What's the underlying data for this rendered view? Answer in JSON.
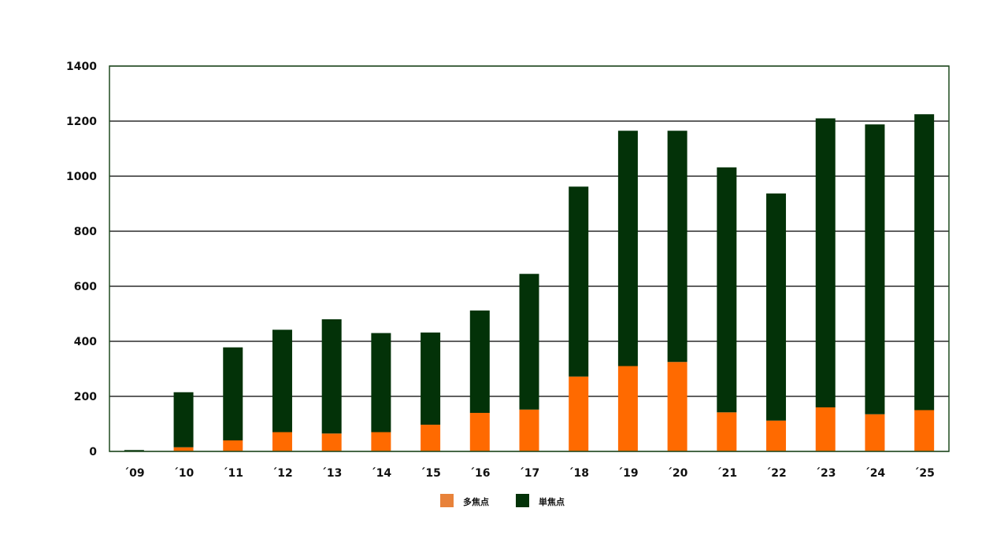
{
  "chart_data": {
    "type": "bar",
    "stacked": true,
    "title": "",
    "xlabel": "",
    "ylabel": "",
    "categories": [
      "´09",
      "´10",
      "´11",
      "´12",
      "´13",
      "´14",
      "´15",
      "´16",
      "´17",
      "´18",
      "´19",
      "´20",
      "´21",
      "´22",
      "´23",
      "´24",
      "´25"
    ],
    "series": [
      {
        "name": "多焦点",
        "color": "#ff6a00",
        "legend_color": "#e8823a",
        "values": [
          0,
          15,
          40,
          70,
          65,
          70,
          97,
          140,
          152,
          272,
          310,
          325,
          142,
          112,
          160,
          135,
          150
        ]
      },
      {
        "name": "単焦点",
        "color": "#033208",
        "legend_color": "#033208",
        "values": [
          5,
          200,
          338,
          372,
          415,
          360,
          335,
          372,
          493,
          690,
          855,
          840,
          890,
          825,
          1050,
          1053,
          1075
        ]
      }
    ],
    "ylim": [
      0,
      1400
    ],
    "yticks": [
      "0",
      "200",
      "400",
      "600",
      "800",
      "1000",
      "1200",
      "1400"
    ],
    "grid": true,
    "legend_position": "bottom-center"
  }
}
